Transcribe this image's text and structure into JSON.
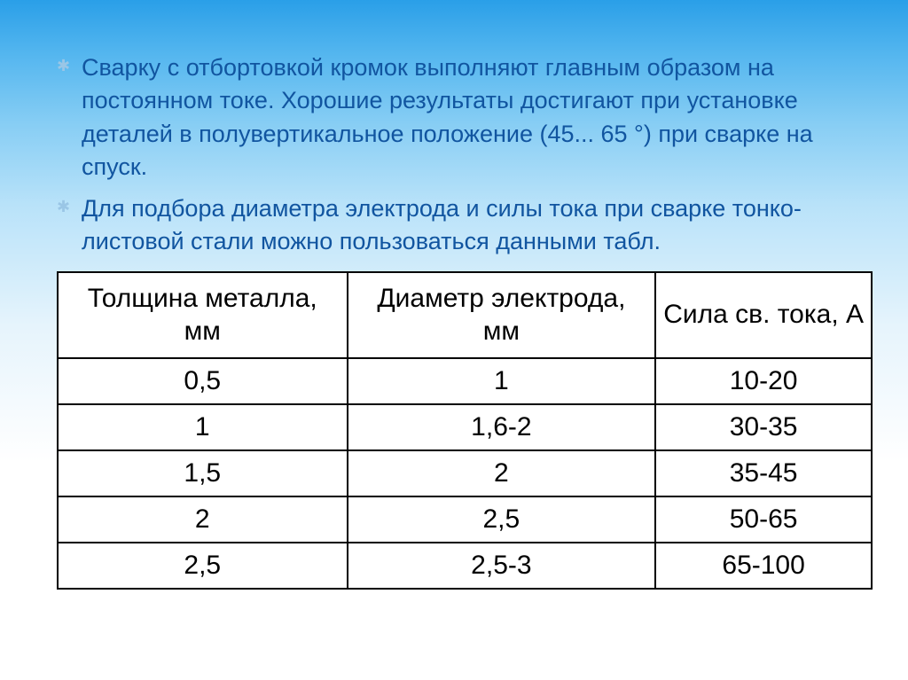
{
  "bullets": [
    "Сварку с отбортовкой кромок выполняют главным образом на постоянном токе. Хорошие результаты достигают при установке деталей в полувертикальное положение (45... 65 °) при сварке на спуск.",
    "Для подбора диаметра электрода и силы тока при сварке тонко- листовой стали можно пользоваться данными табл."
  ],
  "table": {
    "type": "table",
    "columns": [
      "Толщина металла, мм",
      "Диаметр электрода, мм",
      "Сила св. тока, А"
    ],
    "rows": [
      [
        "0,5",
        "1",
        "10-20"
      ],
      [
        "1",
        "1,6-2",
        "30-35"
      ],
      [
        "1,5",
        "2",
        "35-45"
      ],
      [
        "2",
        "2,5",
        "50-65"
      ],
      [
        "2,5",
        "2,5-3",
        "65-100"
      ]
    ],
    "border_color": "#000000",
    "header_fontsize": 30,
    "cell_fontsize": 30,
    "text_color": "#000000",
    "background_color": "#ffffff",
    "col_widths_pct": [
      33.3,
      33.3,
      33.4
    ]
  },
  "style": {
    "bullet_text_color": "#1155a0",
    "bullet_marker_color": "#9ac6e6",
    "bullet_fontsize": 27,
    "gradient_stops": [
      "#2a9fe8",
      "#54b6ef",
      "#86cdf4",
      "#b8e2f9",
      "#e6f4fc",
      "#ffffff"
    ]
  }
}
